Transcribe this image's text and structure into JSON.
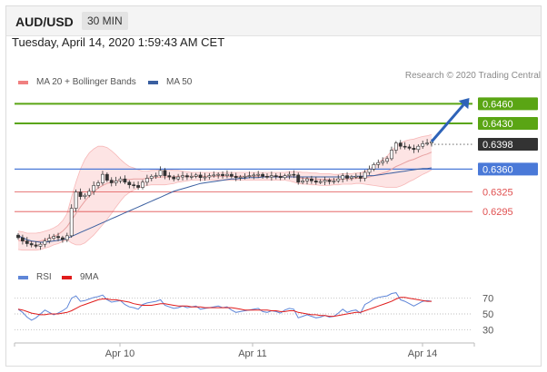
{
  "header": {
    "symbol": "AUD/USD",
    "timeframe": "30 MIN"
  },
  "datetime": "Tuesday, April 14, 2020 1:59:43 AM CET",
  "legend": {
    "ma20_label": "MA 20 + Bollinger Bands",
    "ma50_label": "MA 50",
    "credit": "Research © 2020 Trading Central",
    "rsi_label": "RSI",
    "rsi9_label": "9MA"
  },
  "colors": {
    "bollinger": "#f08080",
    "ma50": "#3a5fa0",
    "green_level": "#5aa514",
    "blue_level": "#4a79d8",
    "red_level": "#e05050",
    "rsi": "#5f86d8",
    "rsi_ma": "#e01c1c"
  },
  "chart_data": [
    {
      "type": "candlestick",
      "ylim": [
        0.623,
        0.648
      ],
      "x_ticks": [
        "Apr 10",
        "Apr 11",
        "Apr 14"
      ],
      "levels": [
        {
          "value": 0.646,
          "label": "0.6460",
          "style": "green-box"
        },
        {
          "value": 0.643,
          "label": "0.6430",
          "style": "green-box"
        },
        {
          "value": 0.6398,
          "label": "0.6398",
          "style": "current"
        },
        {
          "value": 0.636,
          "label": "0.6360",
          "style": "blue-box"
        },
        {
          "value": 0.6325,
          "label": "0.6325",
          "style": "red-text"
        },
        {
          "value": 0.6295,
          "label": "0.6295",
          "style": "red-text"
        }
      ],
      "close": [
        0.6255,
        0.625,
        0.6246,
        0.6244,
        0.6242,
        0.6245,
        0.625,
        0.6254,
        0.6257,
        0.6255,
        0.6252,
        0.6258,
        0.63,
        0.6325,
        0.6318,
        0.632,
        0.6326,
        0.6335,
        0.6339,
        0.6352,
        0.6343,
        0.6339,
        0.6342,
        0.6345,
        0.634,
        0.6336,
        0.6335,
        0.6332,
        0.634,
        0.6346,
        0.6349,
        0.635,
        0.6358,
        0.635,
        0.6348,
        0.6345,
        0.6348,
        0.635,
        0.6348,
        0.6349,
        0.6351,
        0.6347,
        0.6348,
        0.635,
        0.6351,
        0.6352,
        0.635,
        0.6352,
        0.6349,
        0.6347,
        0.6348,
        0.6349,
        0.635,
        0.6351,
        0.6352,
        0.6349,
        0.6348,
        0.635,
        0.6349,
        0.6347,
        0.635,
        0.6352,
        0.6351,
        0.634,
        0.6342,
        0.6345,
        0.6342,
        0.634,
        0.6341,
        0.6343,
        0.6341,
        0.6342,
        0.6345,
        0.635,
        0.6346,
        0.6348,
        0.6349,
        0.6346,
        0.6355,
        0.636,
        0.6367,
        0.637,
        0.6372,
        0.6376,
        0.6389,
        0.64,
        0.6395,
        0.6394,
        0.6392,
        0.639,
        0.6395,
        0.6399,
        0.64,
        0.6402
      ],
      "ma20": [
        0.6251,
        0.625,
        0.6249,
        0.6249,
        0.6249,
        0.625,
        0.6252,
        0.6254,
        0.6257,
        0.626,
        0.6265,
        0.6272,
        0.6282,
        0.6292,
        0.6302,
        0.6311,
        0.6319,
        0.6325,
        0.6331,
        0.6335,
        0.6338,
        0.634,
        0.6342,
        0.6343,
        0.6344,
        0.6344,
        0.6345,
        0.6345,
        0.6345,
        0.6346,
        0.6347,
        0.6347,
        0.6348,
        0.6348,
        0.6348,
        0.6348,
        0.6349,
        0.6349,
        0.6349,
        0.6349,
        0.6349,
        0.6349,
        0.6349,
        0.6349,
        0.6349,
        0.6349,
        0.6349,
        0.6349,
        0.6349,
        0.6349,
        0.6349,
        0.6349,
        0.6349,
        0.6349,
        0.6349,
        0.6349,
        0.6349,
        0.6349,
        0.6349,
        0.6349,
        0.6349,
        0.6349,
        0.6348,
        0.6347,
        0.6346,
        0.6346,
        0.6345,
        0.6345,
        0.6344,
        0.6344,
        0.6344,
        0.6344,
        0.6344,
        0.6345,
        0.6345,
        0.6345,
        0.6346,
        0.6346,
        0.6347,
        0.6348,
        0.635,
        0.6352,
        0.6354,
        0.6356,
        0.636,
        0.6364,
        0.6367,
        0.637,
        0.6373,
        0.6375,
        0.6378,
        0.6381,
        0.6383,
        0.6386
      ],
      "ma50": [
        0.6258,
        0.6255,
        0.6252,
        0.625,
        0.6249,
        0.6248,
        0.6248,
        0.6249,
        0.625,
        0.6251,
        0.6252,
        0.6254,
        0.6257,
        0.626,
        0.6263,
        0.6266,
        0.6269,
        0.6272,
        0.6275,
        0.6278,
        0.6281,
        0.6284,
        0.6287,
        0.629,
        0.6293,
        0.6296,
        0.6299,
        0.6302,
        0.6305,
        0.6308,
        0.6311,
        0.6314,
        0.6317,
        0.632,
        0.6323,
        0.6326,
        0.6328,
        0.633,
        0.6332,
        0.6334,
        0.6336,
        0.6338,
        0.6339,
        0.634,
        0.6341,
        0.6342,
        0.6343,
        0.6344,
        0.6345,
        0.6345,
        0.6346,
        0.6346,
        0.6347,
        0.6347,
        0.6347,
        0.6348,
        0.6348,
        0.6348,
        0.6348,
        0.6348,
        0.6348,
        0.6348,
        0.6348,
        0.6348,
        0.6348,
        0.6348,
        0.6348,
        0.6348,
        0.6348,
        0.6348,
        0.6348,
        0.6348,
        0.6348,
        0.6348,
        0.6348,
        0.6348,
        0.6349,
        0.6349,
        0.6349,
        0.635,
        0.635,
        0.6351,
        0.6352,
        0.6353,
        0.6354,
        0.6355,
        0.6356,
        0.6357,
        0.6358,
        0.6359,
        0.636,
        0.6361,
        0.6361,
        0.6362
      ],
      "band_width": [
        0.0014,
        0.0014,
        0.0013,
        0.0013,
        0.0013,
        0.0013,
        0.0013,
        0.0013,
        0.0013,
        0.0014,
        0.0016,
        0.002,
        0.0035,
        0.0048,
        0.0058,
        0.0064,
        0.0066,
        0.0066,
        0.0064,
        0.006,
        0.0055,
        0.0048,
        0.004,
        0.0032,
        0.0025,
        0.002,
        0.0017,
        0.0014,
        0.0012,
        0.0011,
        0.0011,
        0.0011,
        0.0012,
        0.0012,
        0.0011,
        0.001,
        0.0009,
        0.0008,
        0.0007,
        0.0006,
        0.0006,
        0.0006,
        0.0006,
        0.0006,
        0.0006,
        0.0006,
        0.0006,
        0.0006,
        0.0006,
        0.0006,
        0.0006,
        0.0006,
        0.0006,
        0.0006,
        0.0006,
        0.0006,
        0.0006,
        0.0006,
        0.0006,
        0.0006,
        0.0006,
        0.0007,
        0.0008,
        0.0009,
        0.0009,
        0.0009,
        0.0009,
        0.0009,
        0.0009,
        0.0009,
        0.0009,
        0.0008,
        0.0008,
        0.0008,
        0.0008,
        0.0008,
        0.0008,
        0.0008,
        0.001,
        0.0012,
        0.0015,
        0.0018,
        0.0021,
        0.0024,
        0.0028,
        0.0032,
        0.0033,
        0.0033,
        0.0032,
        0.0031,
        0.003,
        0.0029,
        0.0028,
        0.0027
      ],
      "projection": {
        "from": 0.6402,
        "to": 0.645
      }
    },
    {
      "type": "line",
      "title": "RSI",
      "ylim": [
        20,
        80
      ],
      "y_ticks": [
        70,
        50,
        30
      ],
      "series": [
        {
          "name": "RSI",
          "values": [
            56,
            52,
            46,
            42,
            45,
            50,
            55,
            52,
            49,
            51,
            54,
            58,
            70,
            73,
            66,
            67,
            69,
            71,
            72,
            74,
            68,
            65,
            66,
            67,
            62,
            59,
            58,
            56,
            62,
            64,
            65,
            66,
            68,
            61,
            59,
            57,
            58,
            60,
            58,
            59,
            60,
            56,
            57,
            58,
            59,
            60,
            58,
            59,
            55,
            52,
            53,
            54,
            55,
            56,
            57,
            53,
            52,
            54,
            53,
            51,
            55,
            57,
            56,
            45,
            47,
            49,
            47,
            45,
            46,
            48,
            46,
            47,
            51,
            56,
            52,
            54,
            55,
            51,
            62,
            65,
            69,
            71,
            72,
            73,
            76,
            77,
            68,
            66,
            63,
            60,
            63,
            66,
            67,
            66
          ]
        },
        {
          "name": "9MA",
          "values": [
            56,
            55,
            53,
            51,
            50,
            49,
            49,
            50,
            50,
            50,
            51,
            52,
            54,
            57,
            60,
            62,
            64,
            66,
            68,
            69,
            69,
            68,
            68,
            67,
            66,
            65,
            63,
            62,
            61,
            61,
            61,
            62,
            63,
            63,
            62,
            61,
            60,
            60,
            60,
            59,
            59,
            59,
            58,
            58,
            58,
            58,
            58,
            58,
            58,
            57,
            56,
            55,
            55,
            55,
            55,
            55,
            55,
            54,
            54,
            53,
            53,
            54,
            54,
            52,
            51,
            50,
            49,
            49,
            48,
            48,
            47,
            47,
            48,
            49,
            50,
            51,
            52,
            52,
            54,
            56,
            58,
            60,
            62,
            64,
            66,
            69,
            71,
            71,
            70,
            69,
            68,
            67,
            66,
            66
          ]
        }
      ]
    }
  ]
}
